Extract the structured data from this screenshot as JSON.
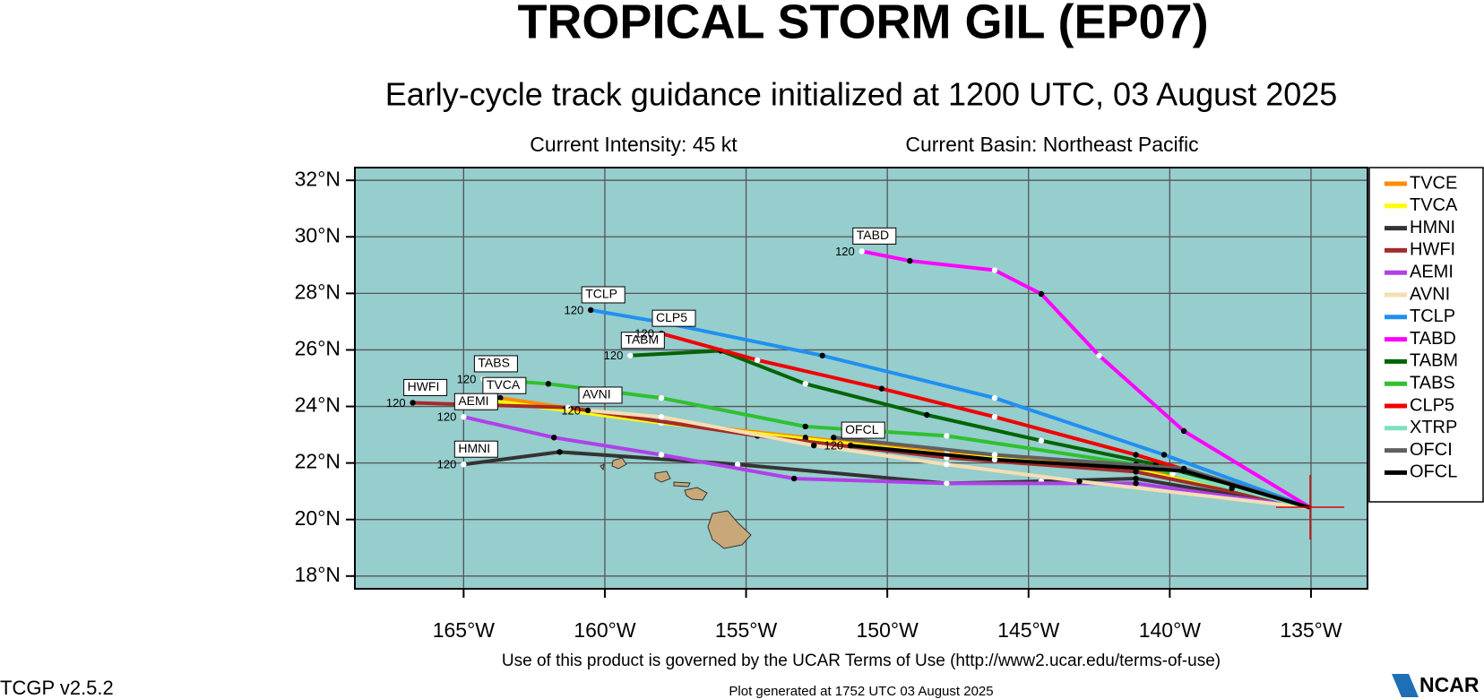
{
  "chart_data": {
    "type": "track",
    "title": "TROPICAL STORM GIL (EP07)",
    "subtitle": "Early-cycle track guidance initialized at 1200 UTC, 03 August 2025",
    "intensity": "Current Intensity: 45 kt",
    "basin": "Current Basin: Northeast Pacific",
    "xlim": [
      -168.85,
      -133
    ],
    "ylim": [
      17.55,
      32.45
    ],
    "xticks": [
      {
        "value": -165,
        "label": "165°W"
      },
      {
        "value": -160,
        "label": "160°W"
      },
      {
        "value": -155,
        "label": "155°W"
      },
      {
        "value": -150,
        "label": "150°W"
      },
      {
        "value": -145,
        "label": "145°W"
      },
      {
        "value": -140,
        "label": "140°W"
      },
      {
        "value": -135,
        "label": "135°W"
      }
    ],
    "yticks": [
      {
        "value": 18,
        "label": "18°N"
      },
      {
        "value": 20,
        "label": "20°N"
      },
      {
        "value": 22,
        "label": "22°N"
      },
      {
        "value": 24,
        "label": "24°N"
      },
      {
        "value": 26,
        "label": "26°N"
      },
      {
        "value": 28,
        "label": "28°N"
      },
      {
        "value": 30,
        "label": "30°N"
      },
      {
        "value": 32,
        "label": "32°N"
      }
    ],
    "grid": true,
    "end_hour": 120,
    "series": [
      {
        "name": "TVCE",
        "color": "#ff8c00",
        "labeled": false,
        "x": [
          -135.0,
          -141.2,
          -147.9,
          -152.9,
          -158.0,
          -163.7
        ],
        "values": [
          20.41,
          21.8,
          22.35,
          22.9,
          23.46,
          24.3
        ]
      },
      {
        "name": "TVCA",
        "color": "#ffff00",
        "labeled": true,
        "x": [
          -135.0,
          -141.2,
          -147.9,
          -152.9,
          -158.0,
          -164.0
        ],
        "values": [
          20.41,
          21.75,
          22.3,
          22.85,
          23.42,
          24.2
        ]
      },
      {
        "name": "HMNI",
        "color": "#333333",
        "labeled": true,
        "x": [
          -135.0,
          -141.2,
          -144.55,
          -147.9,
          -155.3,
          -161.6,
          -165.0
        ],
        "values": [
          20.41,
          21.45,
          21.35,
          21.28,
          21.95,
          22.39,
          21.95
        ]
      },
      {
        "name": "HWFI",
        "color": "#a52a2a",
        "labeled": true,
        "x": [
          -135.0,
          -141.2,
          -147.9,
          -154.6,
          -161.3,
          -166.8
        ],
        "values": [
          20.41,
          21.69,
          22.19,
          22.96,
          23.96,
          24.13
        ]
      },
      {
        "name": "AEMI",
        "color": "#b040e8",
        "labeled": true,
        "x": [
          -135.0,
          -141.2,
          -147.9,
          -153.3,
          -158.0,
          -161.8,
          -165.0
        ],
        "values": [
          20.41,
          21.28,
          21.28,
          21.45,
          22.29,
          22.9,
          23.63
        ]
      },
      {
        "name": "AVNI",
        "color": "#f5deb3",
        "labeled": true,
        "x": [
          -135.0,
          -143.2,
          -147.9,
          -152.6,
          -158.0,
          -160.6
        ],
        "values": [
          20.41,
          21.35,
          21.95,
          22.62,
          23.63,
          23.86
        ]
      },
      {
        "name": "TCLP",
        "color": "#2090f0",
        "labeled": true,
        "x": [
          -135.0,
          -140.2,
          -146.2,
          -152.3,
          -158.0,
          -160.5
        ],
        "values": [
          20.41,
          22.29,
          24.3,
          25.8,
          26.98,
          27.41
        ]
      },
      {
        "name": "TABD",
        "color": "#ff00ff",
        "labeled": true,
        "x": [
          -135.0,
          -139.5,
          -142.5,
          -144.55,
          -146.2,
          -149.2,
          -150.9
        ],
        "values": [
          20.41,
          23.13,
          25.8,
          27.98,
          28.82,
          29.15,
          29.49
        ]
      },
      {
        "name": "TABM",
        "color": "#006400",
        "labeled": true,
        "x": [
          -135.0,
          -140.5,
          -144.55,
          -148.6,
          -152.9,
          -155.9,
          -159.1
        ],
        "values": [
          20.41,
          21.95,
          22.79,
          23.7,
          24.8,
          25.97,
          25.8
        ]
      },
      {
        "name": "TABS",
        "color": "#30c030",
        "labeled": true,
        "x": [
          -135.0,
          -141.2,
          -147.9,
          -152.9,
          -158.0,
          -162.0,
          -164.3
        ],
        "values": [
          20.41,
          21.95,
          22.96,
          23.29,
          24.3,
          24.8,
          24.97
        ]
      },
      {
        "name": "CLP5",
        "color": "#f00000",
        "labeled": true,
        "x": [
          -135.0,
          -141.2,
          -146.2,
          -150.2,
          -154.6,
          -158.0
        ],
        "values": [
          20.41,
          22.29,
          23.63,
          24.63,
          25.64,
          26.58
        ]
      },
      {
        "name": "XTRP",
        "color": "#7fe0c0",
        "labeled": false,
        "x": [
          -135.0,
          -137.8,
          -139.9
        ],
        "values": [
          20.41,
          21.11,
          21.62
        ]
      },
      {
        "name": "OFCI",
        "color": "#606060",
        "labeled": false,
        "x": [
          -135.0,
          -139.5,
          -146.2,
          -151.9
        ],
        "values": [
          20.41,
          21.8,
          22.29,
          22.9
        ]
      },
      {
        "name": "OFCL",
        "color": "#000000",
        "labeled": true,
        "x": [
          -135.0,
          -139.5,
          -146.2,
          -151.3
        ],
        "values": [
          20.41,
          21.72,
          22.12,
          22.62
        ]
      }
    ],
    "footer": "Use of this product is governed by the UCAR Terms of Use (http://www2.ucar.edu/terms-of-use)",
    "version": "TCGP v2.5.2",
    "generated": "Plot generated at 1752 UTC   03 August 2025",
    "logo": "NCAR"
  }
}
